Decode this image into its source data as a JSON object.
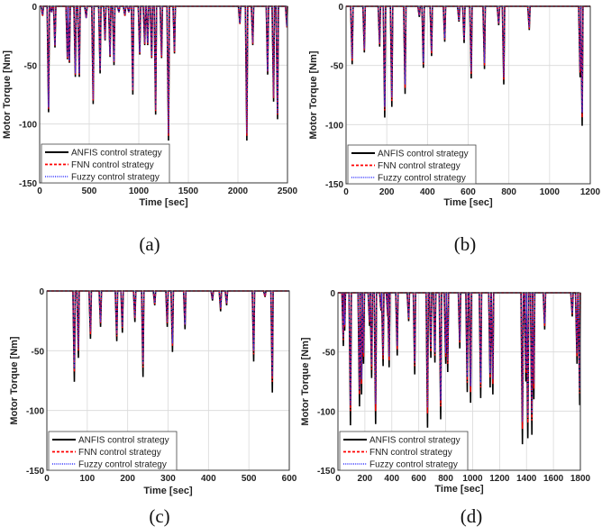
{
  "colors": {
    "anfis": "#000000",
    "fnn": "#ff0000",
    "fuzzy": "#3333ff",
    "grid": "#d9d9d9"
  },
  "chart_data": [
    {
      "type": "line",
      "panel_label": "(a)",
      "xlabel": "Time [sec]",
      "ylabel": "Motor Torque [Nm]",
      "xlim": [
        0,
        2500
      ],
      "ylim": [
        -150,
        0
      ],
      "grid": true,
      "legend_placement": "bottom-left",
      "xticks": [
        0,
        500,
        1000,
        1500,
        2000,
        2500
      ],
      "yticks": [
        0,
        -50,
        -100,
        -150
      ],
      "x": [
        30,
        90,
        120,
        155,
        280,
        300,
        360,
        400,
        470,
        540,
        610,
        660,
        710,
        750,
        800,
        860,
        900,
        940,
        1010,
        1060,
        1090,
        1130,
        1170,
        1230,
        1300,
        1360,
        2020,
        2090,
        2150,
        2300,
        2360,
        2400,
        2495
      ],
      "series": [
        {
          "name": "ANFIS control strategy",
          "values": [
            -8,
            -90,
            -5,
            -35,
            -45,
            -48,
            -60,
            -60,
            -10,
            -83,
            -57,
            -29,
            -43,
            -50,
            -5,
            -8,
            -5,
            -75,
            -41,
            -33,
            -33,
            -44,
            -92,
            -44,
            -114,
            -40,
            -15,
            -114,
            -33,
            -58,
            -81,
            -96,
            -18
          ]
        },
        {
          "name": "FNN control strategy",
          "values": [
            -8,
            -87,
            -5,
            -34,
            -44,
            -47,
            -58,
            -58,
            -10,
            -80,
            -55,
            -28,
            -42,
            -48,
            -5,
            -8,
            -5,
            -72,
            -40,
            -32,
            -32,
            -43,
            -89,
            -43,
            -110,
            -39,
            -15,
            -110,
            -32,
            -56,
            -78,
            -92,
            -18
          ]
        },
        {
          "name": "Fuzzy control strategy",
          "values": [
            -7,
            -86,
            -5,
            -33,
            -43,
            -46,
            -57,
            -57,
            -10,
            -79,
            -54,
            -28,
            -41,
            -47,
            -5,
            -7,
            -5,
            -71,
            -39,
            -31,
            -31,
            -42,
            -88,
            -42,
            -108,
            -38,
            -14,
            -108,
            -31,
            -55,
            -77,
            -91,
            -17
          ]
        }
      ]
    },
    {
      "type": "line",
      "panel_label": "(b)",
      "xlabel": "Time [sec]",
      "ylabel": "Motor Torque [Nm]",
      "xlim": [
        0,
        1200
      ],
      "ylim": [
        -150,
        0
      ],
      "grid": true,
      "legend_placement": "bottom-left",
      "xticks": [
        0,
        200,
        400,
        600,
        800,
        1000,
        1200
      ],
      "yticks": [
        0,
        -50,
        -100,
        -150
      ],
      "x": [
        30,
        90,
        165,
        190,
        225,
        290,
        360,
        380,
        420,
        485,
        555,
        580,
        615,
        680,
        750,
        775,
        900,
        1150,
        1160
      ],
      "series": [
        {
          "name": "ANFIS control strategy",
          "values": [
            -49,
            -39,
            -34,
            -94,
            -85,
            -74,
            -9,
            -52,
            -42,
            -30,
            -13,
            -31,
            -61,
            -53,
            -16,
            -66,
            -20,
            -60,
            -101
          ]
        },
        {
          "name": "FNN control strategy",
          "values": [
            -46,
            -37,
            -32,
            -88,
            -80,
            -69,
            -8,
            -49,
            -40,
            -28,
            -12,
            -29,
            -57,
            -50,
            -15,
            -62,
            -19,
            -56,
            -94
          ]
        },
        {
          "name": "Fuzzy control strategy",
          "values": [
            -44,
            -36,
            -31,
            -85,
            -77,
            -66,
            -8,
            -47,
            -38,
            -27,
            -12,
            -28,
            -55,
            -48,
            -14,
            -60,
            -18,
            -54,
            -90
          ]
        }
      ]
    },
    {
      "type": "line",
      "panel_label": "(c)",
      "xlabel": "Time [sec]",
      "ylabel": "Motor Torque [Nm]",
      "xlim": [
        0,
        600
      ],
      "ylim": [
        -150,
        0
      ],
      "grid": true,
      "legend_placement": "bottom-left",
      "xticks": [
        0,
        100,
        200,
        300,
        400,
        500,
        600
      ],
      "yticks": [
        0,
        -50,
        -100,
        -150
      ],
      "x": [
        68,
        78,
        108,
        133,
        173,
        187,
        218,
        238,
        267,
        298,
        311,
        342,
        410,
        430,
        445,
        512,
        540,
        558
      ],
      "series": [
        {
          "name": "ANFIS control strategy",
          "values": [
            -76,
            -56,
            -40,
            -30,
            -42,
            -35,
            -26,
            -72,
            -12,
            -30,
            -51,
            -32,
            -8,
            -17,
            -12,
            -59,
            -5,
            -85
          ]
        },
        {
          "name": "FNN control strategy",
          "values": [
            -68,
            -50,
            -36,
            -27,
            -38,
            -31,
            -23,
            -64,
            -11,
            -27,
            -46,
            -29,
            -7,
            -15,
            -11,
            -53,
            -5,
            -76
          ]
        },
        {
          "name": "Fuzzy control strategy",
          "values": [
            -65,
            -48,
            -34,
            -26,
            -36,
            -30,
            -22,
            -61,
            -10,
            -26,
            -44,
            -28,
            -7,
            -14,
            -10,
            -50,
            -4,
            -72
          ]
        }
      ]
    },
    {
      "type": "line",
      "panel_label": "(d)",
      "xlabel": "Time [sec]",
      "ylabel": "Motor Torque [Nm]",
      "xlim": [
        0,
        1800
      ],
      "ylim": [
        -150,
        0
      ],
      "grid": true,
      "legend_placement": "bottom-left",
      "xticks": [
        0,
        200,
        400,
        600,
        800,
        1000,
        1200,
        1400,
        1600,
        1800
      ],
      "yticks": [
        0,
        -50,
        -100,
        -150
      ],
      "x": [
        40,
        50,
        93,
        160,
        175,
        190,
        235,
        250,
        280,
        320,
        335,
        370,
        380,
        440,
        525,
        570,
        665,
        690,
        720,
        763,
        800,
        815,
        905,
        960,
        985,
        1060,
        1130,
        1150,
        1370,
        1395,
        1410,
        1440,
        1455,
        1535,
        1740,
        1775,
        1795
      ],
      "series": [
        {
          "name": "ANFIS control strategy",
          "values": [
            -45,
            -32,
            -112,
            -96,
            -86,
            -60,
            -28,
            -72,
            -111,
            -15,
            -62,
            -20,
            -63,
            -53,
            -24,
            -69,
            -114,
            -55,
            -59,
            -107,
            -60,
            -67,
            -47,
            -84,
            -93,
            -89,
            -80,
            -86,
            -128,
            -75,
            -123,
            -120,
            -90,
            -31,
            -20,
            -60,
            -95
          ]
        },
        {
          "name": "FNN control strategy",
          "values": [
            -40,
            -29,
            -100,
            -86,
            -77,
            -54,
            -25,
            -65,
            -100,
            -14,
            -56,
            -18,
            -57,
            -48,
            -22,
            -62,
            -102,
            -50,
            -53,
            -96,
            -54,
            -60,
            -42,
            -76,
            -84,
            -80,
            -72,
            -77,
            -115,
            -68,
            -110,
            -108,
            -81,
            -28,
            -18,
            -54,
            -85
          ]
        },
        {
          "name": "Fuzzy control strategy",
          "values": [
            -38,
            -27,
            -95,
            -82,
            -73,
            -51,
            -24,
            -61,
            -94,
            -13,
            -53,
            -17,
            -54,
            -45,
            -21,
            -59,
            -97,
            -47,
            -50,
            -91,
            -51,
            -57,
            -40,
            -71,
            -79,
            -76,
            -68,
            -73,
            -109,
            -64,
            -105,
            -102,
            -77,
            -26,
            -17,
            -51,
            -81
          ]
        }
      ]
    }
  ]
}
